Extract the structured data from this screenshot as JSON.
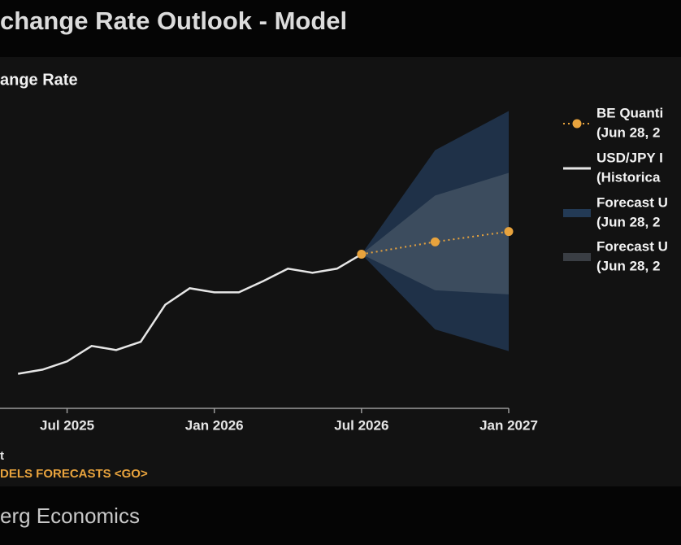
{
  "chart_data": {
    "type": "line",
    "title": "change Rate Outlook - Model",
    "subtitle": "ange Rate",
    "footnote": "t",
    "link": "DELS FORECASTS <GO>",
    "source": "erg Economics",
    "xlim": [
      "2025-04",
      "2027-01"
    ],
    "ylim": [
      135,
      165
    ],
    "xticks": [
      {
        "value": "2025-07",
        "label": "Jul 2025"
      },
      {
        "value": "2026-01",
        "label": "Jan 2026"
      },
      {
        "value": "2026-07",
        "label": "Jul 2026"
      },
      {
        "value": "2027-01",
        "label": "Jan 2027"
      }
    ],
    "bands": [
      {
        "name": "Forecast U",
        "note": "(Jun 28, 2",
        "color": "#1f3148",
        "legend_color": "#233a55",
        "x": [
          "2026-07",
          "2026-10",
          "2027-01"
        ],
        "upper": [
          149.8,
          159.9,
          163.7
        ],
        "lower": [
          149.8,
          142.5,
          140.4
        ]
      },
      {
        "name": "Forecast U",
        "note": "(Jun 28, 2",
        "color": "#3c4c5e",
        "legend_color": "#3a3e44",
        "x": [
          "2026-07",
          "2026-10",
          "2027-01"
        ],
        "upper": [
          149.8,
          155.5,
          157.7
        ],
        "lower": [
          149.8,
          146.3,
          145.9
        ]
      }
    ],
    "series": [
      {
        "name": "USD/JPY I",
        "note": "(Historica",
        "color": "#e6e6e6",
        "x": [
          "2025-05",
          "2025-06",
          "2025-07",
          "2025-08",
          "2025-09",
          "2025-10",
          "2025-11",
          "2025-12",
          "2026-01",
          "2026-02",
          "2026-03",
          "2026-04",
          "2026-05",
          "2026-06",
          "2026-07"
        ],
        "values": [
          138.2,
          138.6,
          139.4,
          140.9,
          140.5,
          141.3,
          144.9,
          146.5,
          146.1,
          146.1,
          147.2,
          148.4,
          148.0,
          148.4,
          149.8
        ]
      },
      {
        "name": "BE Quanti",
        "note": "(Jun 28, 2",
        "color": "#e8a33d",
        "dotted": true,
        "x": [
          "2026-07",
          "2026-10",
          "2027-01"
        ],
        "values": [
          149.8,
          151.0,
          152.0
        ]
      }
    ]
  }
}
